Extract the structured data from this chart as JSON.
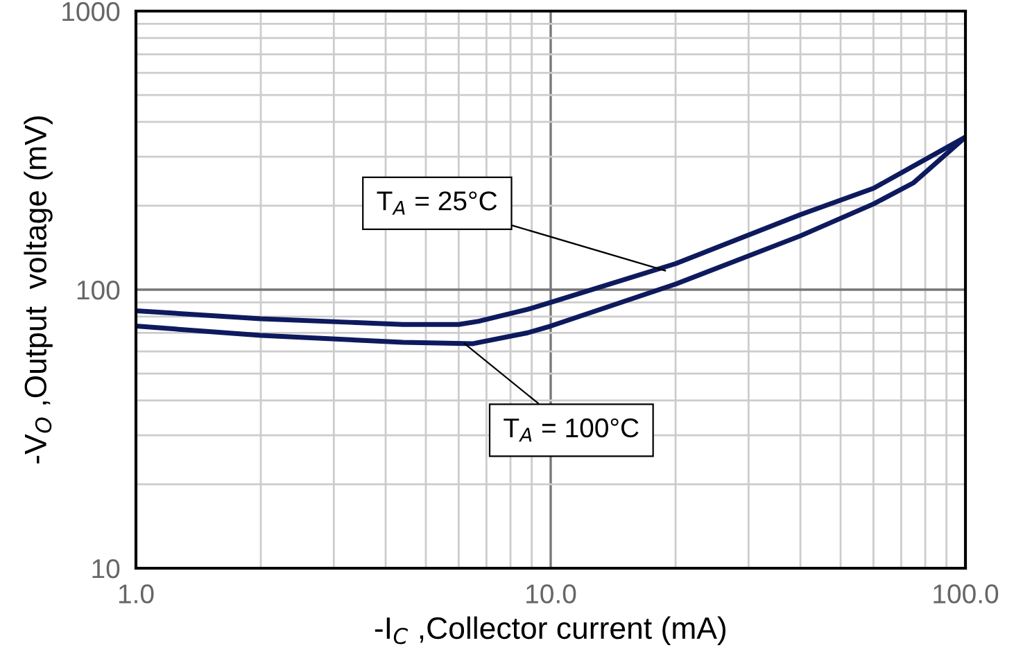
{
  "chart_data": {
    "type": "line",
    "xlabel": "-I$_{C}$ ,Collector current (mA)",
    "ylabel": "-V$_{O}$ ,Output  voltage (mV)",
    "log": "xy",
    "xlim": [
      1,
      100
    ],
    "ylim": [
      10,
      1000
    ],
    "xticks": [
      {
        "value": 1,
        "label": "1.0"
      },
      {
        "value": 10,
        "label": "10.0"
      },
      {
        "value": 100,
        "label": "100.0"
      }
    ],
    "yticks": [
      10,
      100,
      1000
    ],
    "grid": true,
    "marker": "none",
    "line_style": "solid",
    "legend": false,
    "series": [
      {
        "color": "#0d1a5e",
        "x": [
          1,
          2,
          4.4,
          6,
          6.7,
          8.8,
          10,
          20,
          40,
          60,
          100
        ],
        "values": [
          84,
          78.6,
          75,
          75,
          77,
          85,
          90,
          124,
          186,
          231,
          353
        ]
      },
      {
        "color": "#0d1a5e",
        "x": [
          1,
          2,
          4.4,
          6.5,
          8.8,
          10,
          20,
          40,
          60,
          75,
          100
        ],
        "values": [
          74,
          68.5,
          64.7,
          64,
          70,
          74,
          104.7,
          156,
          203,
          242,
          353
        ]
      }
    ],
    "annotations": [
      {
        "text": "T$_{A}$ = 25°C",
        "x": 18.9,
        "y": 117
      },
      {
        "text": "T$_{A}$ = 100°C",
        "x": 6.2,
        "y": 64
      }
    ]
  }
}
